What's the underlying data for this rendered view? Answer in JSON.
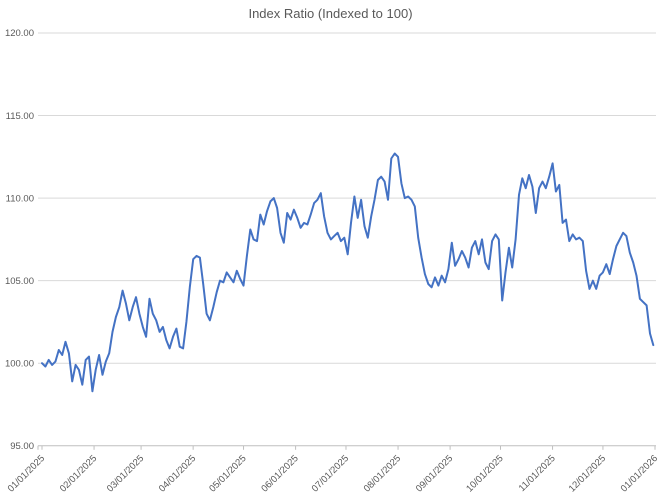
{
  "title": "Index Ratio (Indexed to 100)",
  "chart_data": {
    "type": "line",
    "title": "Index Ratio (Indexed to 100)",
    "legend": "none",
    "grid": "horizontal",
    "y_axis": {
      "min": 95,
      "max": 120,
      "tick_interval": 5,
      "tick_labels": [
        "95.00",
        "100.00",
        "105.00",
        "110.00",
        "115.00",
        "120.00"
      ]
    },
    "x_axis": {
      "tick_labels": [
        "01/01/2025",
        "02/01/2025",
        "03/01/2025",
        "04/01/2025",
        "05/01/2025",
        "06/01/2025",
        "07/01/2025",
        "08/01/2025",
        "09/01/2025",
        "10/01/2025",
        "11/01/2025",
        "12/01/2025",
        "01/01/2026"
      ],
      "tick_days": [
        0,
        31,
        59,
        90,
        120,
        151,
        181,
        212,
        243,
        273,
        304,
        334,
        365
      ],
      "total_days": 365,
      "label_rotation_deg": -45
    },
    "series": [
      {
        "name": "Index Ratio",
        "color": "#4472C4",
        "sample_interval_days": 2,
        "start_day": 0,
        "values": [
          100.0,
          99.8,
          100.2,
          99.9,
          100.1,
          100.8,
          100.5,
          101.3,
          100.6,
          98.9,
          99.9,
          99.6,
          98.7,
          100.2,
          100.4,
          98.3,
          99.6,
          100.5,
          99.3,
          100.1,
          100.6,
          101.9,
          102.8,
          103.4,
          104.4,
          103.6,
          102.6,
          103.4,
          104.0,
          103.0,
          102.2,
          101.6,
          103.9,
          103.0,
          102.6,
          101.9,
          102.2,
          101.4,
          100.9,
          101.6,
          102.1,
          101.0,
          100.9,
          102.5,
          104.6,
          106.3,
          106.5,
          106.4,
          104.8,
          103.0,
          102.6,
          103.4,
          104.3,
          105.0,
          104.9,
          105.5,
          105.2,
          104.9,
          105.6,
          105.1,
          104.7,
          106.5,
          108.1,
          107.5,
          107.4,
          109.0,
          108.4,
          109.2,
          109.8,
          110.0,
          109.4,
          107.9,
          107.3,
          109.1,
          108.7,
          109.3,
          108.8,
          108.2,
          108.5,
          108.4,
          109.0,
          109.7,
          109.9,
          110.3,
          108.9,
          107.9,
          107.5,
          107.7,
          107.9,
          107.4,
          107.6,
          106.6,
          108.5,
          110.1,
          108.8,
          109.9,
          108.3,
          107.6,
          108.9,
          109.9,
          111.1,
          111.3,
          111.0,
          109.9,
          112.4,
          112.7,
          112.5,
          110.9,
          110.0,
          110.1,
          109.9,
          109.5,
          107.6,
          106.4,
          105.4,
          104.8,
          104.6,
          105.2,
          104.7,
          105.3,
          104.9,
          105.7,
          107.3,
          105.9,
          106.3,
          106.8,
          106.4,
          105.8,
          107.0,
          107.4,
          106.6,
          107.5,
          106.1,
          105.7,
          107.4,
          107.8,
          107.5,
          103.8,
          105.5,
          107.0,
          105.8,
          107.5,
          110.2,
          111.2,
          110.6,
          111.4,
          110.7,
          109.1,
          110.6,
          111.0,
          110.6,
          111.3,
          112.1,
          110.4,
          110.8,
          108.5,
          108.7,
          107.4,
          107.8,
          107.5,
          107.6,
          107.4,
          105.6,
          104.5,
          105.0,
          104.5,
          105.3,
          105.5,
          106.0,
          105.4,
          106.3,
          107.1,
          107.5,
          107.9,
          107.7,
          106.7,
          106.1,
          105.3,
          103.9,
          103.7,
          103.5,
          101.8,
          101.1
        ]
      }
    ],
    "colors": {
      "line": "#4472C4",
      "gridline": "#D9D9D9",
      "axis": "#BFBFBF",
      "text": "#595959",
      "background": "#FFFFFF"
    }
  }
}
